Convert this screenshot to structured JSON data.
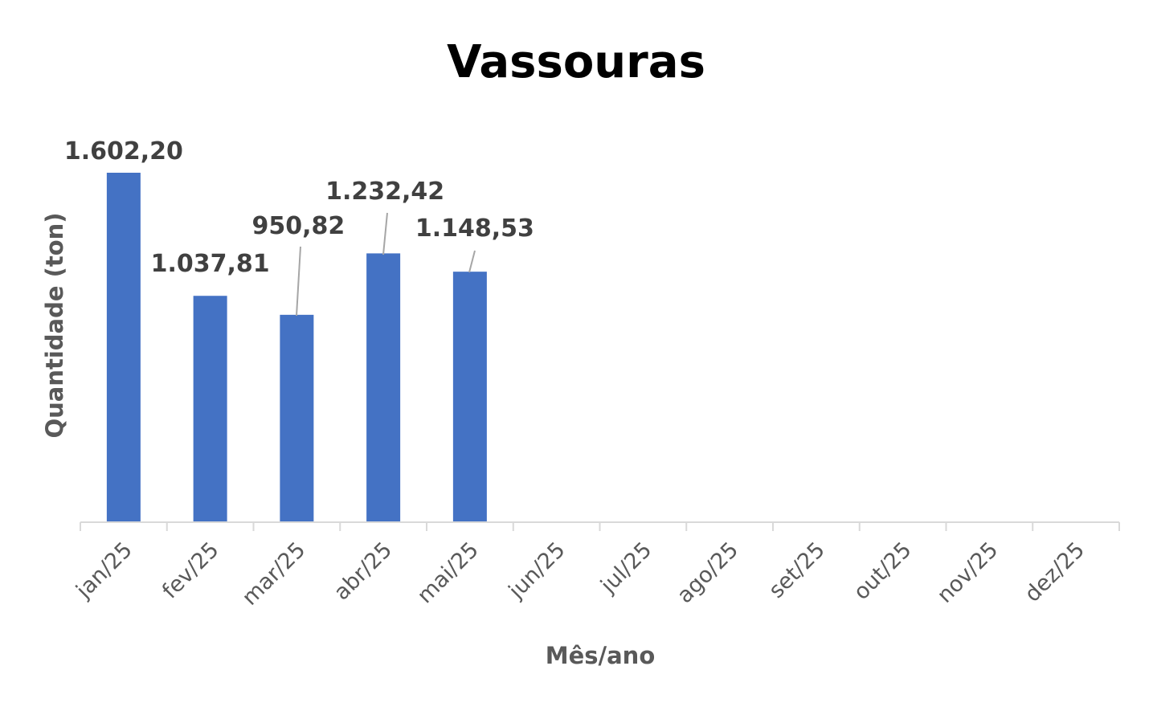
{
  "chart_data": {
    "type": "bar",
    "title": "Vassouras",
    "xlabel": "Mês/ano",
    "ylabel": "Quantidade (ton)",
    "categories": [
      "jan/25",
      "fev/25",
      "mar/25",
      "abr/25",
      "mai/25",
      "jun/25",
      "jul/25",
      "ago/25",
      "set/25",
      "out/25",
      "nov/25",
      "dez/25"
    ],
    "values": [
      1602.2,
      1037.81,
      950.82,
      1232.42,
      1148.53,
      null,
      null,
      null,
      null,
      null,
      null,
      null
    ],
    "data_labels": [
      "1.602,20",
      "1.037,81",
      "950,82",
      "1.232,42",
      "1.148,53",
      "",
      "",
      "",
      "",
      "",
      "",
      ""
    ],
    "ylim": [
      0,
      1602.2
    ],
    "grid": false,
    "legend": "none",
    "bar_color": "#4472C4",
    "axis_color": "#D9D9D9",
    "text_color": "#595959"
  }
}
